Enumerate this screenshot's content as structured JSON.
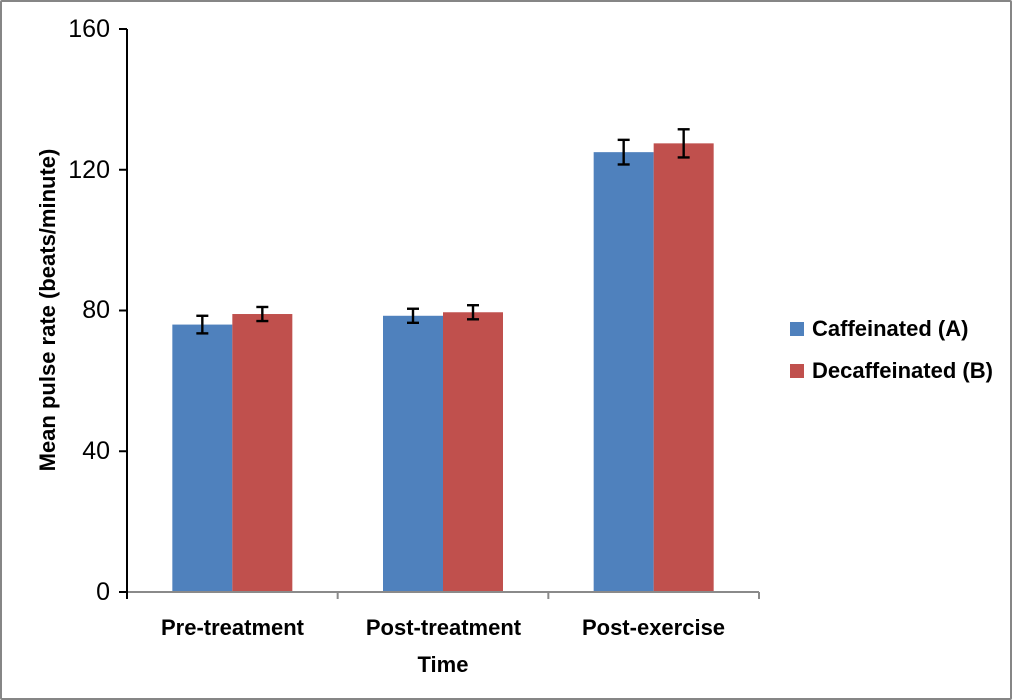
{
  "chart_data": {
    "type": "bar",
    "title": "",
    "xlabel": "Time",
    "ylabel": "Mean pulse rate (beats/minute)",
    "categories": [
      "Pre-treatment",
      "Post-treatment",
      "Post-exercise"
    ],
    "series": [
      {
        "name": "Caffeinated (A)",
        "color": "#4F81BD",
        "values": [
          76,
          78.5,
          125
        ],
        "errors": [
          2.5,
          2,
          3.5
        ]
      },
      {
        "name": "Decaffeinated (B)",
        "color": "#C0504D",
        "values": [
          79,
          79.5,
          127.5
        ],
        "errors": [
          2,
          2,
          4
        ]
      }
    ],
    "ylim": [
      0,
      160
    ],
    "yticks": [
      0,
      40,
      80,
      120,
      160
    ],
    "grid": false,
    "legend_position": "right",
    "error_bar_color": "#000000",
    "axis": {
      "y_color": "#000000",
      "x_color": "#8a8a8a"
    },
    "frame_border_color": "#868686"
  }
}
